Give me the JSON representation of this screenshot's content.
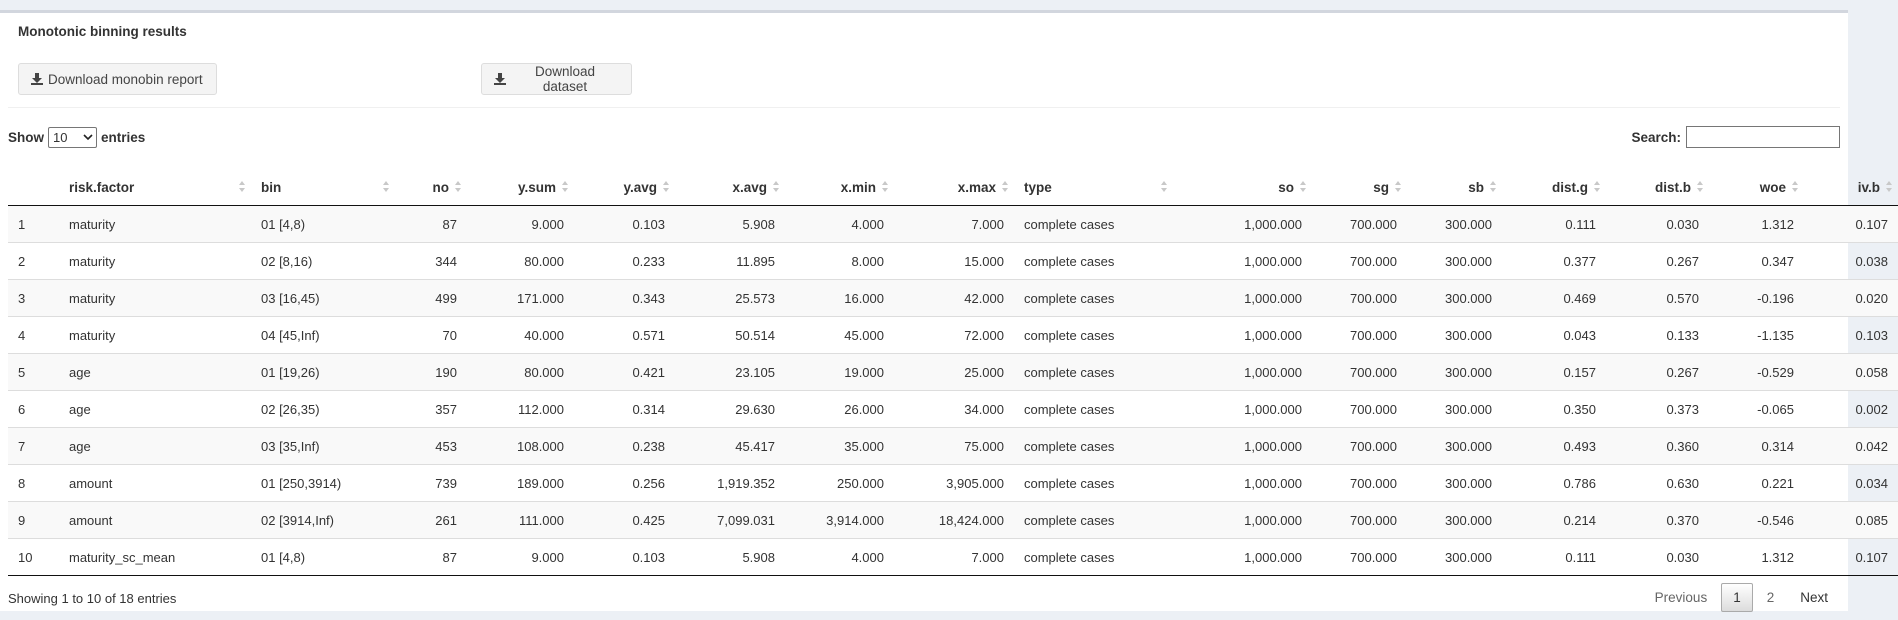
{
  "box": {
    "title": "Monotonic binning results",
    "btn_report": "Download monobin report",
    "btn_dataset": "Download dataset"
  },
  "length": {
    "show": "Show",
    "value": "10",
    "entries": "entries"
  },
  "search": {
    "label": "Search:",
    "value": ""
  },
  "table": {
    "headers": [
      "risk.factor",
      "bin",
      "no",
      "y.sum",
      "y.avg",
      "x.avg",
      "x.min",
      "x.max",
      "type",
      "so",
      "sg",
      "sb",
      "dist.g",
      "dist.b",
      "woe",
      "iv.b"
    ],
    "rows": [
      [
        "1",
        "maturity",
        "01 [4,8)",
        "87",
        "9.000",
        "0.103",
        "5.908",
        "4.000",
        "7.000",
        "complete cases",
        "1,000.000",
        "700.000",
        "300.000",
        "0.111",
        "0.030",
        "1.312",
        "0.107"
      ],
      [
        "2",
        "maturity",
        "02 [8,16)",
        "344",
        "80.000",
        "0.233",
        "11.895",
        "8.000",
        "15.000",
        "complete cases",
        "1,000.000",
        "700.000",
        "300.000",
        "0.377",
        "0.267",
        "0.347",
        "0.038"
      ],
      [
        "3",
        "maturity",
        "03 [16,45)",
        "499",
        "171.000",
        "0.343",
        "25.573",
        "16.000",
        "42.000",
        "complete cases",
        "1,000.000",
        "700.000",
        "300.000",
        "0.469",
        "0.570",
        "-0.196",
        "0.020"
      ],
      [
        "4",
        "maturity",
        "04 [45,Inf)",
        "70",
        "40.000",
        "0.571",
        "50.514",
        "45.000",
        "72.000",
        "complete cases",
        "1,000.000",
        "700.000",
        "300.000",
        "0.043",
        "0.133",
        "-1.135",
        "0.103"
      ],
      [
        "5",
        "age",
        "01 [19,26)",
        "190",
        "80.000",
        "0.421",
        "23.105",
        "19.000",
        "25.000",
        "complete cases",
        "1,000.000",
        "700.000",
        "300.000",
        "0.157",
        "0.267",
        "-0.529",
        "0.058"
      ],
      [
        "6",
        "age",
        "02 [26,35)",
        "357",
        "112.000",
        "0.314",
        "29.630",
        "26.000",
        "34.000",
        "complete cases",
        "1,000.000",
        "700.000",
        "300.000",
        "0.350",
        "0.373",
        "-0.065",
        "0.002"
      ],
      [
        "7",
        "age",
        "03 [35,Inf)",
        "453",
        "108.000",
        "0.238",
        "45.417",
        "35.000",
        "75.000",
        "complete cases",
        "1,000.000",
        "700.000",
        "300.000",
        "0.493",
        "0.360",
        "0.314",
        "0.042"
      ],
      [
        "8",
        "amount",
        "01 [250,3914)",
        "739",
        "189.000",
        "0.256",
        "1,919.352",
        "250.000",
        "3,905.000",
        "complete cases",
        "1,000.000",
        "700.000",
        "300.000",
        "0.786",
        "0.630",
        "0.221",
        "0.034"
      ],
      [
        "9",
        "amount",
        "02 [3914,Inf)",
        "261",
        "111.000",
        "0.425",
        "7,099.031",
        "3,914.000",
        "18,424.000",
        "complete cases",
        "1,000.000",
        "700.000",
        "300.000",
        "0.214",
        "0.370",
        "-0.546",
        "0.085"
      ],
      [
        "10",
        "maturity_sc_mean",
        "01 [4,8)",
        "87",
        "9.000",
        "0.103",
        "5.908",
        "4.000",
        "7.000",
        "complete cases",
        "1,000.000",
        "700.000",
        "300.000",
        "0.111",
        "0.030",
        "1.312",
        "0.107"
      ]
    ]
  },
  "info": "Showing 1 to 10 of 18 entries",
  "pager": {
    "previous": "Previous",
    "pages": [
      "1",
      "2"
    ],
    "next": "Next"
  },
  "icons": {
    "download": "download-icon",
    "dropdown": "chevron-down-icon"
  }
}
